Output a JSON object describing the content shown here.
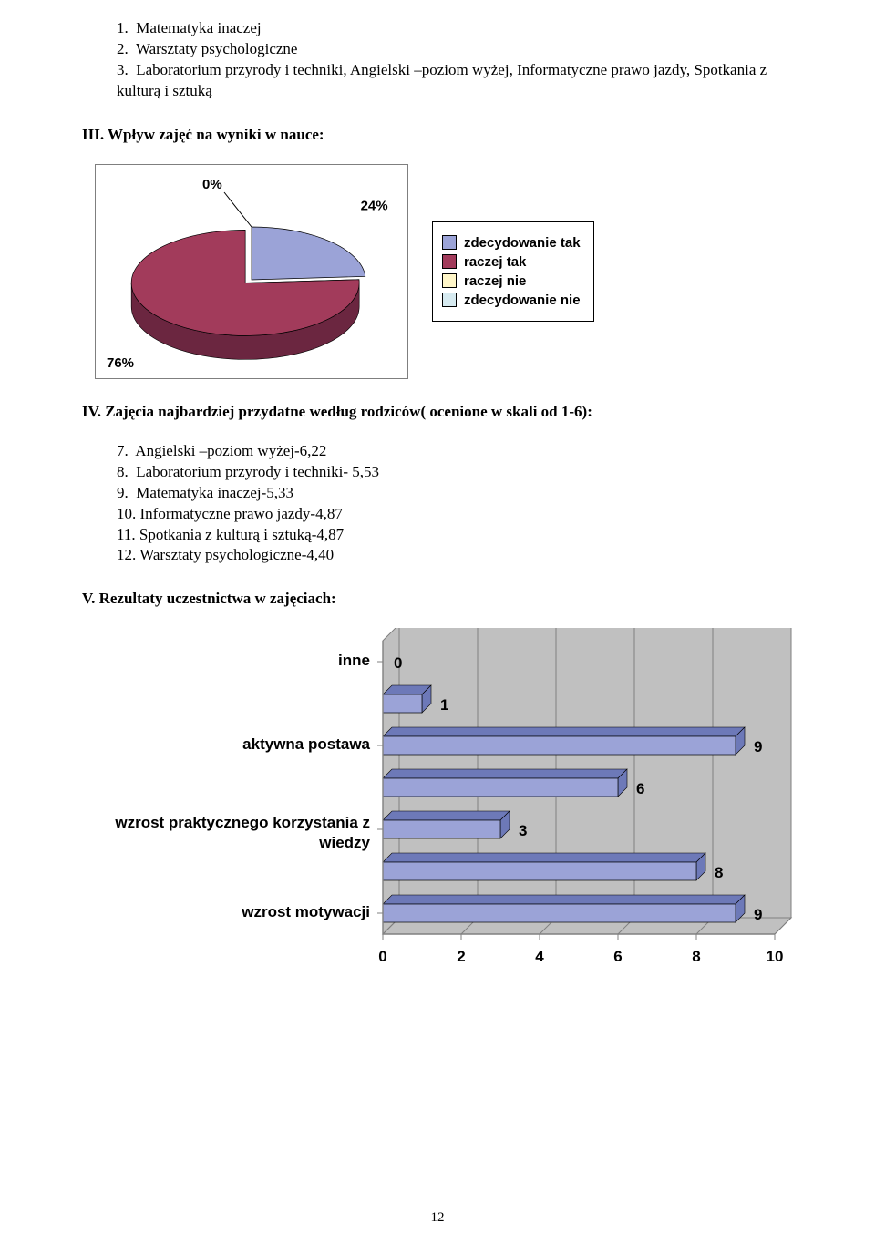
{
  "list_top": {
    "items": [
      "1.  Matematyka inaczej",
      "2.  Warsztaty psychologiczne",
      "3.  Laboratorium przyrody i techniki, Angielski –poziom wyżej, Informatyczne prawo jazdy, Spotkania z kulturą i sztuką"
    ]
  },
  "sec3_heading": "III. Wpływ  zajęć na  wyniki w nauce:",
  "pie_chart": {
    "type": "pie_3d",
    "slices": [
      {
        "label": "zdecydowanie tak",
        "pct": 24,
        "color": "#9ba3d7"
      },
      {
        "label": "raczej tak",
        "pct": 76,
        "color": "#a23b5b"
      },
      {
        "label": "raczej nie",
        "pct": 0,
        "color": "#fff6c8"
      },
      {
        "label": "zdecydowanie nie",
        "pct": 0,
        "color": "#d6eaf0"
      }
    ],
    "callouts": [
      {
        "pct": "0%",
        "slice": 2
      },
      {
        "pct": "24%",
        "slice": 0
      },
      {
        "pct": "76%",
        "slice": 1
      }
    ],
    "edge_color": "#000000",
    "side_color_76": "#6b2640",
    "side_color_24": "#6d79b8",
    "label_font": "Arial",
    "label_fontsize": 15,
    "label_bold": true
  },
  "sec4_heading": "IV. Zajęcia najbardziej przydatne według rodziców( ocenione w skali od 1-6):",
  "list_rank": {
    "items": [
      "7.  Angielski –poziom wyżej-6,22",
      "8.  Laboratorium przyrody i techniki- 5,53",
      "9.  Matematyka inaczej-5,33",
      "10. Informatyczne prawo jazdy-4,87",
      "11. Spotkania z kulturą i sztuką-4,87",
      "12. Warsztaty psychologiczne-4,40"
    ]
  },
  "sec5_heading": "V. Rezultaty uczestnictwa w zajęciach:",
  "bar_chart": {
    "type": "hbar",
    "categories_labels": [
      "inne",
      "aktywna postawa",
      "wzrost praktycznego korzystania z wiedzy",
      "wzrost motywacji"
    ],
    "bars": [
      {
        "value": 0,
        "label": "0"
      },
      {
        "value": 1,
        "label": "1"
      },
      {
        "value": 9,
        "label": "9"
      },
      {
        "value": 6,
        "label": "6"
      },
      {
        "value": 3,
        "label": "3"
      },
      {
        "value": 8,
        "label": "8"
      },
      {
        "value": 9,
        "label": "9"
      }
    ],
    "xlim": [
      0,
      10
    ],
    "xtick_step": 2,
    "xticks": [
      "0",
      "2",
      "4",
      "6",
      "8",
      "10"
    ],
    "bar_face_color": "#9ba3d7",
    "bar_side_color": "#6d79b8",
    "bar_edge_color": "#000000",
    "axis_color": "#808080",
    "grid_color": "#808080",
    "background_color": "#c0c0c0",
    "label_font": "Arial",
    "label_fontsize": 17,
    "label_bold": true,
    "value_label_fontsize": 17
  },
  "page_number": "12"
}
